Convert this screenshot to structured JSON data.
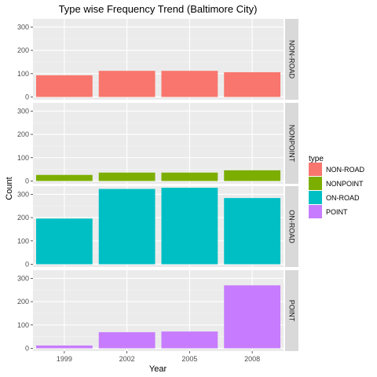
{
  "chart_data": {
    "type": "bar",
    "title": "Type wise Frequency Trend (Baltimore City)",
    "xlabel": "Year",
    "ylabel": "Count",
    "categories": [
      "1999",
      "2002",
      "2005",
      "2008"
    ],
    "ylim": [
      -12,
      335
    ],
    "yticks": [
      0,
      100,
      200,
      300
    ],
    "facet_wrap": "rows",
    "grid": true,
    "legend_title": "type",
    "legend_position": "right",
    "series": [
      {
        "name": "NON-ROAD",
        "color": "#F8766D",
        "values": [
          93,
          112,
          112,
          106
        ]
      },
      {
        "name": "NONPOINT",
        "color": "#7CAE00",
        "values": [
          26,
          36,
          36,
          46
        ]
      },
      {
        "name": "ON-ROAD",
        "color": "#00BFC4",
        "values": [
          196,
          323,
          328,
          284
        ]
      },
      {
        "name": "POINT",
        "color": "#C77CFF",
        "values": [
          12,
          69,
          72,
          270
        ]
      }
    ]
  }
}
